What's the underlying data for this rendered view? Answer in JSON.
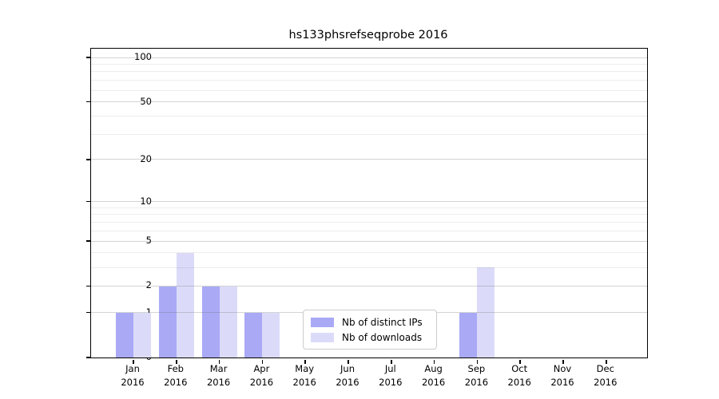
{
  "title": "hs133phsrefseqprobe 2016",
  "colors": {
    "bar_ips": "#a9a9f6",
    "bar_downloads": "#dbdbf9",
    "grid_major": "rgba(100,100,100,0.28)",
    "grid_minor": "rgba(0,0,0,0.07)",
    "axis": "#000000"
  },
  "chart_data": {
    "type": "bar",
    "title": "hs133phsrefseqprobe 2016",
    "xlabel": "",
    "ylabel": "",
    "scale": "log1p",
    "ylim": [
      0,
      100
    ],
    "grid": "on",
    "legend_position": "lower-center-inside",
    "categories": [
      "Jan",
      "Feb",
      "Mar",
      "Apr",
      "May",
      "Jun",
      "Jul",
      "Aug",
      "Sep",
      "Oct",
      "Nov",
      "Dec"
    ],
    "year": "2016",
    "yticks": [
      0,
      1,
      2,
      5,
      10,
      20,
      50,
      100
    ],
    "minor_gridlines": [
      3,
      4,
      6,
      7,
      8,
      9,
      30,
      40,
      60,
      70,
      80,
      90
    ],
    "series": [
      {
        "name": "Nb of distinct IPs",
        "values": [
          1,
          2,
          2,
          1,
          0,
          0,
          0,
          0,
          1,
          0,
          0,
          0
        ]
      },
      {
        "name": "Nb of downloads",
        "values": [
          1,
          4,
          2,
          1,
          0,
          0,
          0,
          0,
          3,
          0,
          0,
          0
        ]
      }
    ]
  }
}
